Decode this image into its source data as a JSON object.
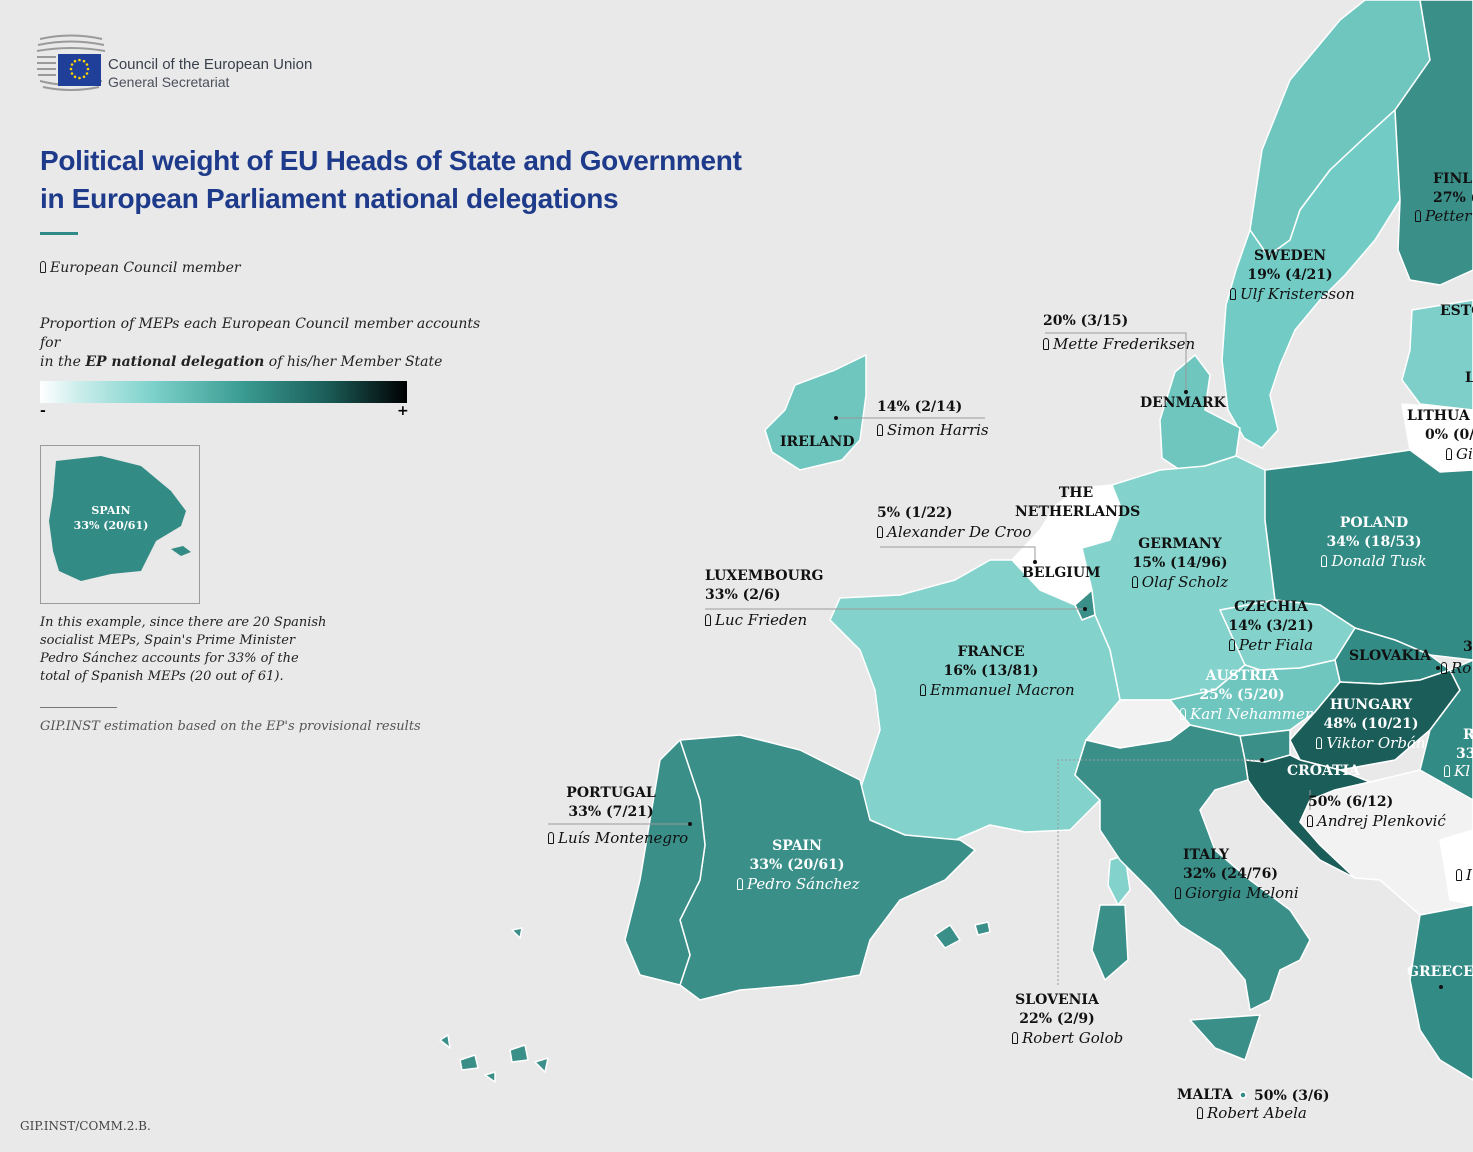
{
  "header": {
    "org_name": "Council of the European Union",
    "org_sub": "General Secretariat"
  },
  "title": {
    "line1": "Political weight of EU Heads of State and Government",
    "line2": "in European Parliament national delegations"
  },
  "legend": {
    "member_label": "European Council member",
    "desc_part1": "Proportion of MEPs each European Council member accounts for",
    "desc_part2": "in the ",
    "desc_bold": "EP national delegation",
    "desc_part3": " of his/her Member State",
    "scale_min": "-",
    "scale_max": "+",
    "scale_colors": [
      "#ffffff",
      "#7fd3cc",
      "#3a9c93",
      "#000000"
    ]
  },
  "example": {
    "country": "SPAIN",
    "value": "33% (20/61)",
    "text": "In this example, since there are 20 Spanish socialist MEPs, Spain's Prime Minister Pedro Sánchez accounts for 33% of the total of Spanish MEPs (20 out of 61)."
  },
  "source_note": "GIP.INST estimation based on the EP's provisional results",
  "footer_code": "GIP.INST/COMM.2.B.",
  "colors": {
    "background": "#e9e9e9",
    "title": "#1e3a8a",
    "sea_border": "#ffffff",
    "zero": "#ffffff",
    "low": "#7ecfc9",
    "mid": "#3a8f89",
    "high": "#1b5e59"
  },
  "countries": [
    {
      "name": "SWEDEN",
      "percent": "19% (4/21)",
      "leader": "Ulf Kristersson"
    },
    {
      "name": "DENMARK",
      "percent": "20% (3/15)",
      "leader": "Mette Frederiksen"
    },
    {
      "name": "IRELAND",
      "percent": "14% (2/14)",
      "leader": "Simon Harris"
    },
    {
      "name": "THE NETHERLANDS",
      "percent": "",
      "leader": ""
    },
    {
      "name": "BELGIUM",
      "percent": "5% (1/22)",
      "leader": "Alexander De Croo"
    },
    {
      "name": "GERMANY",
      "percent": "15% (14/96)",
      "leader": "Olaf Scholz"
    },
    {
      "name": "POLAND",
      "percent": "34% (18/53)",
      "leader": "Donald Tusk"
    },
    {
      "name": "LUXEMBOURG",
      "percent": "33% (2/6)",
      "leader": "Luc Frieden"
    },
    {
      "name": "CZECHIA",
      "percent": "14% (3/21)",
      "leader": "Petr Fiala"
    },
    {
      "name": "FRANCE",
      "percent": "16% (13/81)",
      "leader": "Emmanuel Macron"
    },
    {
      "name": "SLOVAKIA",
      "percent": "",
      "leader": ""
    },
    {
      "name": "AUSTRIA",
      "percent": "25% (5/20)",
      "leader": "Karl Nehammer"
    },
    {
      "name": "HUNGARY",
      "percent": "48% (10/21)",
      "leader": "Viktor Orbán"
    },
    {
      "name": "CROATIA",
      "percent": "50% (6/12)",
      "leader": "Andrej Plenković"
    },
    {
      "name": "PORTUGAL",
      "percent": "33% (7/21)",
      "leader": "Luís Montenegro"
    },
    {
      "name": "SPAIN",
      "percent": "33% (20/61)",
      "leader": "Pedro Sánchez"
    },
    {
      "name": "ITALY",
      "percent": "32% (24/76)",
      "leader": "Giorgia Meloni"
    },
    {
      "name": "SLOVENIA",
      "percent": "22% (2/9)",
      "leader": "Robert Golob"
    },
    {
      "name": "MALTA",
      "percent": "50% (3/6)",
      "leader": "Robert Abela"
    },
    {
      "name": "GREECE",
      "percent": "",
      "leader": ""
    }
  ],
  "edge_fragments": {
    "finland_name": "FINL",
    "finland_pct": "27% (",
    "finland_leader": "Petter",
    "estonia": "ESTO",
    "latvia": "L",
    "lithuania_name": "LITHUA",
    "lithuania_pct": "0% (0/",
    "lithuania_leader": "Gi",
    "slovakia_pct": "3",
    "slovakia_leader": "Ro",
    "romania_name": "R",
    "romania_pct": "33",
    "romania_leader": "Kl",
    "bulgaria_leader": "I"
  }
}
